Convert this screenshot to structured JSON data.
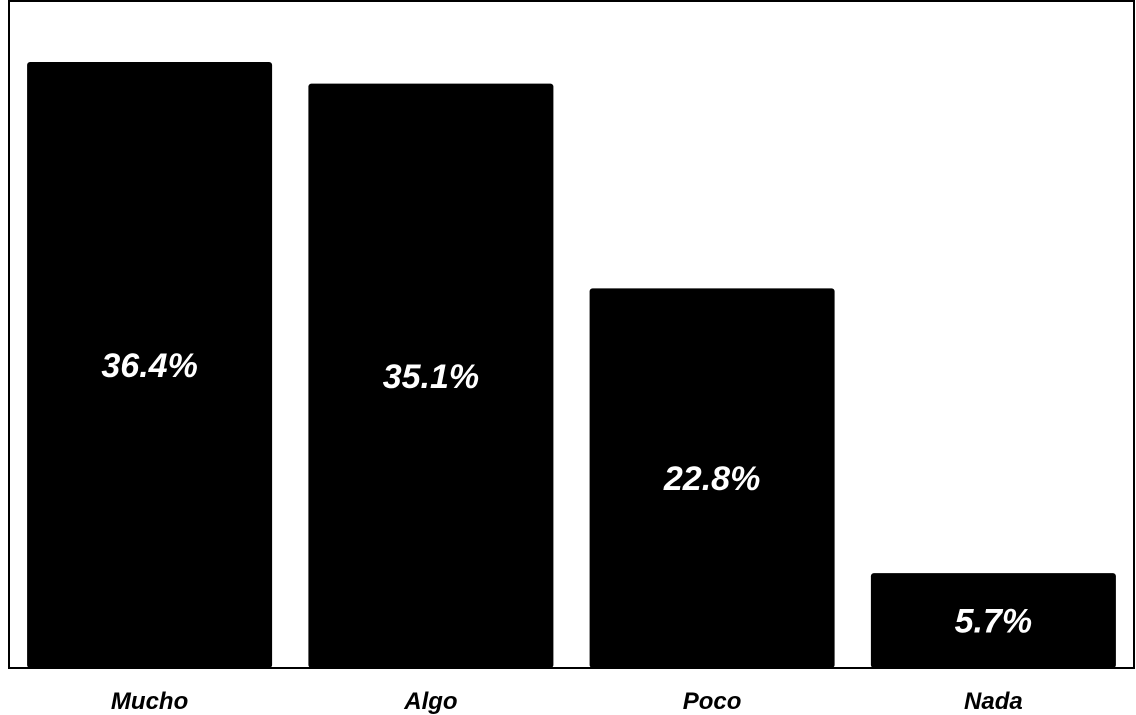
{
  "chart_data": {
    "type": "bar",
    "categories": [
      "Mucho",
      "Algo",
      "Poco",
      "Nada"
    ],
    "values": [
      36.4,
      35.1,
      22.8,
      5.7
    ],
    "data_labels": [
      "36.4%",
      "35.1%",
      "22.8%",
      "5.7%"
    ],
    "title": "",
    "xlabel": "",
    "ylabel": "",
    "ylim": [
      0,
      40
    ],
    "grid": false,
    "legend": "none",
    "bar_color": "#000000",
    "label_color": "#ffffff",
    "frame_color": "#000000"
  }
}
